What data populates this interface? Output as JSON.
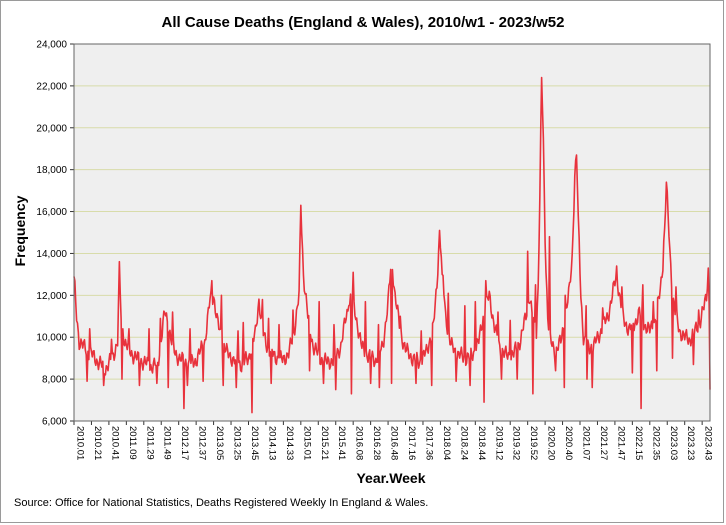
{
  "chart_data": {
    "type": "line",
    "title": "All Cause Deaths (England & Wales), 2010/w1 - 2023/w52",
    "xlabel": "Year.Week",
    "ylabel": "Frequency",
    "source": "Source: Office for National Statistics, Deaths Registered Weekly In England & Wales.",
    "ylim": [
      6000,
      24000
    ],
    "yticks": [
      6000,
      8000,
      10000,
      12000,
      14000,
      16000,
      18000,
      20000,
      22000,
      24000
    ],
    "ytick_labels": [
      "6,000",
      "8,000",
      "10,000",
      "12,000",
      "14,000",
      "16,000",
      "18,000",
      "20,000",
      "22,000",
      "24,000"
    ],
    "grid": true,
    "line_color": "#e8323c",
    "plot_background": "#efefef",
    "grid_color": "#d8dcaa",
    "n_weeks": 730,
    "xticks": [
      {
        "week": 0,
        "label": "2010.01"
      },
      {
        "week": 20,
        "label": "2010.21"
      },
      {
        "week": 40,
        "label": "2010.41"
      },
      {
        "week": 60,
        "label": "2011.09"
      },
      {
        "week": 80,
        "label": "2011.29"
      },
      {
        "week": 100,
        "label": "2011.49"
      },
      {
        "week": 120,
        "label": "2012.17"
      },
      {
        "week": 140,
        "label": "2012.37"
      },
      {
        "week": 160,
        "label": "2013.05"
      },
      {
        "week": 180,
        "label": "2013.25"
      },
      {
        "week": 200,
        "label": "2013.45"
      },
      {
        "week": 220,
        "label": "2014.13"
      },
      {
        "week": 240,
        "label": "2014.33"
      },
      {
        "week": 260,
        "label": "2015.01"
      },
      {
        "week": 280,
        "label": "2015.21"
      },
      {
        "week": 300,
        "label": "2015.41"
      },
      {
        "week": 320,
        "label": "2016.08"
      },
      {
        "week": 340,
        "label": "2016.28"
      },
      {
        "week": 360,
        "label": "2016.48"
      },
      {
        "week": 380,
        "label": "2017.16"
      },
      {
        "week": 400,
        "label": "2017.36"
      },
      {
        "week": 420,
        "label": "2018.04"
      },
      {
        "week": 440,
        "label": "2018.24"
      },
      {
        "week": 460,
        "label": "2018.44"
      },
      {
        "week": 480,
        "label": "2019.12"
      },
      {
        "week": 500,
        "label": "2019.32"
      },
      {
        "week": 520,
        "label": "2019.52"
      },
      {
        "week": 540,
        "label": "2020.20"
      },
      {
        "week": 560,
        "label": "2020.40"
      },
      {
        "week": 580,
        "label": "2021.07"
      },
      {
        "week": 600,
        "label": "2021.27"
      },
      {
        "week": 620,
        "label": "2021.47"
      },
      {
        "week": 640,
        "label": "2022.15"
      },
      {
        "week": 660,
        "label": "2022.35"
      },
      {
        "week": 680,
        "label": "2023.03"
      },
      {
        "week": 700,
        "label": "2023.23"
      },
      {
        "week": 720,
        "label": "2023.43"
      }
    ],
    "anchors": [
      [
        0,
        12900
      ],
      [
        3,
        11000
      ],
      [
        6,
        9800
      ],
      [
        12,
        9500
      ],
      [
        20,
        9200
      ],
      [
        28,
        8800
      ],
      [
        36,
        8500
      ],
      [
        44,
        9000
      ],
      [
        50,
        9800
      ],
      [
        52,
        13200
      ],
      [
        54,
        11000
      ],
      [
        58,
        9800
      ],
      [
        64,
        9300
      ],
      [
        72,
        9000
      ],
      [
        80,
        8800
      ],
      [
        88,
        8600
      ],
      [
        96,
        8700
      ],
      [
        104,
        11200
      ],
      [
        108,
        10600
      ],
      [
        112,
        9800
      ],
      [
        116,
        9200
      ],
      [
        124,
        8900
      ],
      [
        132,
        8700
      ],
      [
        140,
        8900
      ],
      [
        150,
        9800
      ],
      [
        156,
        11800
      ],
      [
        160,
        12000
      ],
      [
        164,
        10800
      ],
      [
        170,
        9800
      ],
      [
        176,
        9200
      ],
      [
        184,
        8900
      ],
      [
        192,
        8700
      ],
      [
        200,
        9000
      ],
      [
        208,
        10200
      ],
      [
        212,
        11800
      ],
      [
        216,
        10300
      ],
      [
        222,
        9500
      ],
      [
        230,
        9100
      ],
      [
        238,
        8900
      ],
      [
        246,
        9200
      ],
      [
        252,
        10200
      ],
      [
        258,
        12000
      ],
      [
        260,
        16300
      ],
      [
        263,
        13000
      ],
      [
        268,
        11000
      ],
      [
        274,
        9600
      ],
      [
        282,
        9000
      ],
      [
        290,
        8800
      ],
      [
        298,
        8900
      ],
      [
        306,
        9600
      ],
      [
        312,
        11000
      ],
      [
        318,
        12000
      ],
      [
        324,
        10800
      ],
      [
        330,
        9500
      ],
      [
        338,
        9100
      ],
      [
        346,
        8900
      ],
      [
        354,
        9600
      ],
      [
        360,
        11600
      ],
      [
        364,
        13800
      ],
      [
        368,
        12000
      ],
      [
        374,
        10300
      ],
      [
        380,
        9400
      ],
      [
        388,
        9000
      ],
      [
        396,
        8800
      ],
      [
        404,
        9300
      ],
      [
        412,
        10500
      ],
      [
        416,
        12500
      ],
      [
        419,
        15100
      ],
      [
        422,
        13300
      ],
      [
        426,
        11000
      ],
      [
        432,
        9600
      ],
      [
        440,
        9200
      ],
      [
        448,
        9000
      ],
      [
        456,
        9100
      ],
      [
        464,
        9800
      ],
      [
        470,
        11200
      ],
      [
        476,
        12000
      ],
      [
        482,
        10500
      ],
      [
        488,
        9500
      ],
      [
        496,
        9100
      ],
      [
        504,
        9200
      ],
      [
        512,
        9900
      ],
      [
        518,
        11000
      ],
      [
        522,
        12000
      ],
      [
        526,
        10800
      ],
      [
        530,
        10200
      ],
      [
        532,
        12500
      ],
      [
        534,
        16800
      ],
      [
        536,
        22400
      ],
      [
        538,
        19500
      ],
      [
        540,
        14500
      ],
      [
        543,
        11000
      ],
      [
        546,
        9800
      ],
      [
        552,
        9300
      ],
      [
        558,
        9800
      ],
      [
        564,
        11200
      ],
      [
        568,
        12300
      ],
      [
        571,
        13800
      ],
      [
        574,
        17700
      ],
      [
        576,
        18700
      ],
      [
        578,
        15800
      ],
      [
        581,
        12000
      ],
      [
        584,
        10000
      ],
      [
        588,
        9500
      ],
      [
        596,
        9600
      ],
      [
        604,
        10300
      ],
      [
        612,
        11000
      ],
      [
        618,
        12200
      ],
      [
        622,
        13000
      ],
      [
        626,
        11800
      ],
      [
        630,
        10800
      ],
      [
        636,
        10400
      ],
      [
        642,
        10600
      ],
      [
        648,
        11200
      ],
      [
        654,
        10600
      ],
      [
        660,
        10300
      ],
      [
        666,
        10800
      ],
      [
        672,
        12200
      ],
      [
        676,
        14000
      ],
      [
        679,
        17400
      ],
      [
        682,
        14800
      ],
      [
        686,
        12000
      ],
      [
        690,
        11000
      ],
      [
        694,
        10300
      ],
      [
        700,
        10000
      ],
      [
        706,
        9900
      ],
      [
        712,
        10300
      ],
      [
        718,
        10800
      ],
      [
        722,
        11400
      ],
      [
        725,
        12000
      ],
      [
        727,
        13300
      ],
      [
        728,
        11600
      ],
      [
        729,
        7500
      ]
    ],
    "dips": [
      [
        15,
        7900
      ],
      [
        34,
        7700
      ],
      [
        55,
        8000
      ],
      [
        75,
        7700
      ],
      [
        95,
        7800
      ],
      [
        108,
        7600
      ],
      [
        126,
        6600
      ],
      [
        130,
        7700
      ],
      [
        148,
        7900
      ],
      [
        171,
        7700
      ],
      [
        186,
        7600
      ],
      [
        204,
        6400
      ],
      [
        226,
        7800
      ],
      [
        260,
        7600
      ],
      [
        270,
        8400
      ],
      [
        286,
        7800
      ],
      [
        300,
        7500
      ],
      [
        318,
        7300
      ],
      [
        340,
        7800
      ],
      [
        350,
        7600
      ],
      [
        364,
        7800
      ],
      [
        374,
        8400
      ],
      [
        392,
        7800
      ],
      [
        410,
        7700
      ],
      [
        438,
        7900
      ],
      [
        454,
        7700
      ],
      [
        470,
        6900
      ],
      [
        490,
        8000
      ],
      [
        508,
        8000
      ],
      [
        526,
        7300
      ],
      [
        552,
        8400
      ],
      [
        562,
        7600
      ],
      [
        588,
        8000
      ],
      [
        594,
        7600
      ],
      [
        640,
        8300
      ],
      [
        650,
        6600
      ],
      [
        668,
        8400
      ],
      [
        686,
        9000
      ],
      [
        710,
        8700
      ]
    ],
    "spikes": [
      [
        18,
        10400
      ],
      [
        43,
        9900
      ],
      [
        63,
        10400
      ],
      [
        86,
        10400
      ],
      [
        99,
        10900
      ],
      [
        113,
        11200
      ],
      [
        133,
        10400
      ],
      [
        158,
        12700
      ],
      [
        169,
        12000
      ],
      [
        188,
        10300
      ],
      [
        194,
        10700
      ],
      [
        216,
        11800
      ],
      [
        223,
        10900
      ],
      [
        235,
        10600
      ],
      [
        251,
        11300
      ],
      [
        281,
        11700
      ],
      [
        298,
        10600
      ],
      [
        315,
        11500
      ],
      [
        320,
        13100
      ],
      [
        334,
        11700
      ],
      [
        349,
        10600
      ],
      [
        374,
        11000
      ],
      [
        398,
        10300
      ],
      [
        422,
        13000
      ],
      [
        429,
        12100
      ],
      [
        448,
        11500
      ],
      [
        460,
        11700
      ],
      [
        472,
        12700
      ],
      [
        486,
        11200
      ],
      [
        500,
        10800
      ],
      [
        520,
        14100
      ],
      [
        529,
        12500
      ],
      [
        545,
        14800
      ],
      [
        563,
        12000
      ],
      [
        587,
        11500
      ],
      [
        606,
        11400
      ],
      [
        622,
        13400
      ],
      [
        628,
        12400
      ],
      [
        652,
        12500
      ],
      [
        664,
        11700
      ],
      [
        676,
        14600
      ],
      [
        690,
        12400
      ],
      [
        716,
        11300
      ]
    ]
  }
}
